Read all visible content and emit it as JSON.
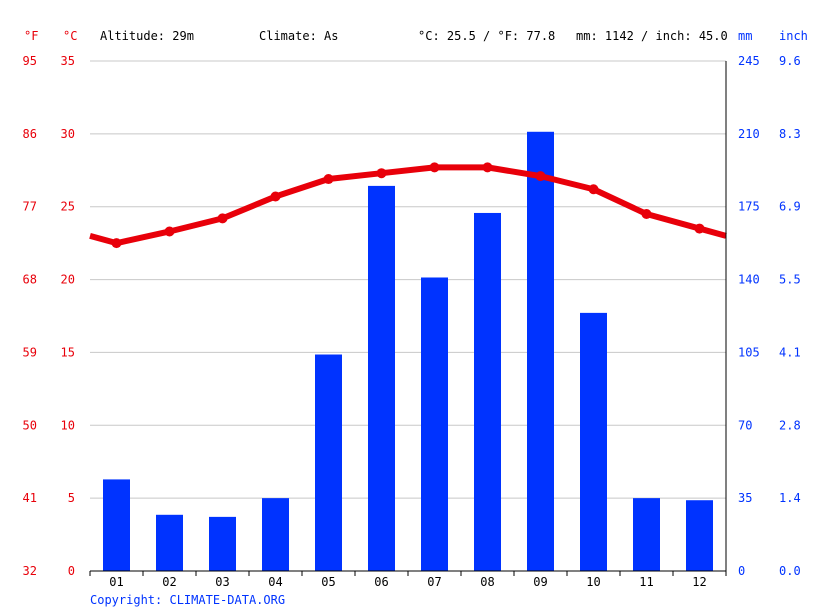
{
  "header": {
    "unit_f": "°F",
    "unit_c": "°C",
    "altitude": "Altitude: 29m",
    "climate": "Climate: As",
    "avg_temp": "°C: 25.5 / °F: 77.8",
    "precip_total": "mm: 1142 / inch: 45.0",
    "unit_mm": "mm",
    "unit_inch": "inch"
  },
  "footer": {
    "copyright": "Copyright: CLIMATE-DATA.ORG"
  },
  "colors": {
    "temperature": "#e8000a",
    "precipitation": "#0033ff",
    "grid": "#c8c8c8"
  },
  "chart_data": {
    "type": "bar+line",
    "categories": [
      "01",
      "02",
      "03",
      "04",
      "05",
      "06",
      "07",
      "08",
      "09",
      "10",
      "11",
      "12"
    ],
    "series": [
      {
        "kind": "bar",
        "axis": "right-mm",
        "values": [
          44,
          27,
          26,
          35,
          104,
          185,
          141,
          172,
          211,
          124,
          35,
          34
        ]
      },
      {
        "kind": "line",
        "axis": "left-c",
        "values": [
          22.5,
          23.3,
          24.2,
          25.7,
          26.9,
          27.3,
          27.7,
          27.7,
          27.1,
          26.2,
          24.5,
          23.5
        ]
      }
    ],
    "line_edge_values": {
      "start": 23.0,
      "end": 23.0
    },
    "left_ticks_c": [
      "0",
      "5",
      "10",
      "15",
      "20",
      "25",
      "30",
      "35"
    ],
    "left_ticks_f": [
      "32",
      "41",
      "50",
      "59",
      "68",
      "77",
      "86",
      "95"
    ],
    "right_ticks_mm": [
      "0",
      "35",
      "70",
      "105",
      "140",
      "175",
      "210",
      "245"
    ],
    "right_ticks_inch": [
      "0.0",
      "1.4",
      "2.8",
      "4.1",
      "5.5",
      "6.9",
      "8.3",
      "9.6"
    ],
    "ylim_c": [
      0,
      35
    ],
    "ylim_mm": [
      0,
      245
    ],
    "grid": true
  }
}
